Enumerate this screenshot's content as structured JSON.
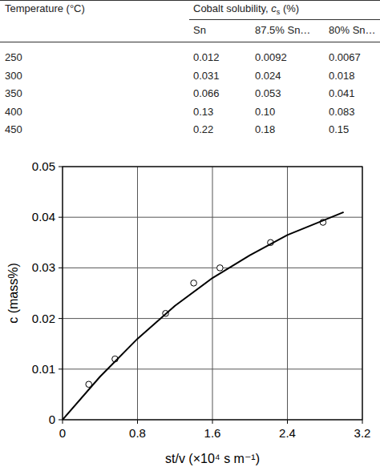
{
  "table": {
    "header": "Temperature (°C)",
    "group_header": {
      "before": "Cobalt solubility, ",
      "symbol": "c",
      "subscript": "s",
      "after": " (%)"
    },
    "columns": [
      "Sn",
      "87.5% Sn…",
      "80% Sn…"
    ],
    "rows": [
      [
        "250",
        "0.012",
        "0.0092",
        "0.0067"
      ],
      [
        "300",
        "0.031",
        "0.024",
        "0.018"
      ],
      [
        "350",
        "0.066",
        "0.053",
        "0.041"
      ],
      [
        "400",
        "0.13",
        "0.10",
        "0.083"
      ],
      [
        "450",
        "0.22",
        "0.18",
        "0.15"
      ]
    ]
  },
  "chart_data": {
    "type": "scatter",
    "x_label": "st/v (×10⁴ s m⁻¹)",
    "y_label": "c (mass%)",
    "xlim": [
      0,
      3.2
    ],
    "ylim": [
      0,
      0.05
    ],
    "xticks": [
      0,
      0.8,
      1.6,
      2.4,
      3.2
    ],
    "yticks": [
      0,
      0.01,
      0.02,
      0.03,
      0.04,
      0.05
    ],
    "grid": true,
    "series": [
      {
        "type": "scatter",
        "marker": "open-circle",
        "color": "#000000",
        "x": [
          0.28,
          0.56,
          1.1,
          1.4,
          1.68,
          2.22,
          2.78
        ],
        "values": [
          0.007,
          0.012,
          0.021,
          0.027,
          0.03,
          0.035,
          0.039
        ]
      },
      {
        "type": "line",
        "line_style": "solid",
        "color": "#000000",
        "x": [
          0,
          0.4,
          0.8,
          1.2,
          1.6,
          2.0,
          2.4,
          2.8,
          3.0
        ],
        "values": [
          0,
          0.0085,
          0.016,
          0.0225,
          0.028,
          0.0325,
          0.0365,
          0.0395,
          0.041
        ]
      }
    ]
  }
}
